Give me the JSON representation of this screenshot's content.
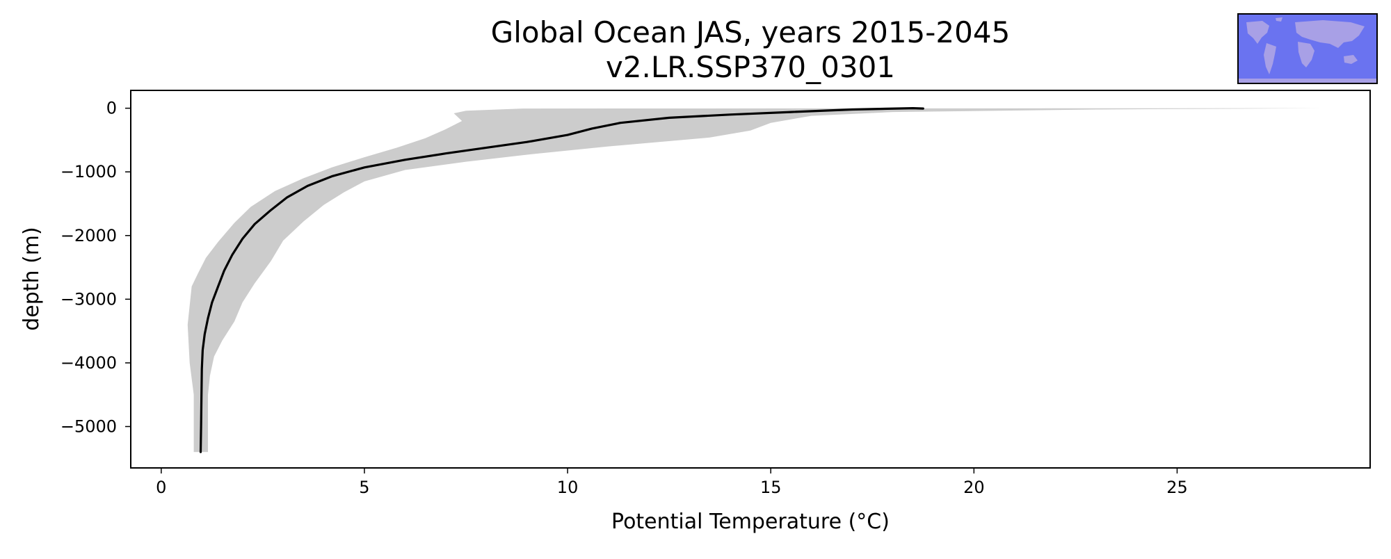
{
  "chart_data": {
    "type": "line",
    "title": "Global Ocean JAS, years 2015-2045",
    "subtitle": "v2.LR.SSP370_0301",
    "xlabel": "Potential Temperature (°C)",
    "ylabel": "depth (m)",
    "xlim": [
      -0.75,
      29.75
    ],
    "ylim": [
      -5650,
      280
    ],
    "xticks": [
      0,
      5,
      10,
      15,
      20,
      25
    ],
    "yticks": [
      0,
      -1000,
      -2000,
      -3000,
      -4000,
      -5000
    ],
    "xtick_labels": [
      "0",
      "5",
      "10",
      "15",
      "20",
      "25"
    ],
    "ytick_labels": [
      "0",
      "−1000",
      "−2000",
      "−3000",
      "−4000",
      "−5000"
    ],
    "grid": false,
    "colors": {
      "line": "#000000",
      "band": "#cccccc",
      "map_ocean": "#6a73f0",
      "map_land": "#a8a0e6",
      "frame": "#000000"
    },
    "series": [
      {
        "values": [
          {
            "x": 18.75,
            "y": -5
          },
          {
            "x": 18.5,
            "y": 0
          },
          {
            "x": 17.0,
            "y": -20
          },
          {
            "x": 15.5,
            "y": -60
          },
          {
            "x": 14.0,
            "y": -100
          },
          {
            "x": 12.5,
            "y": -150
          },
          {
            "x": 11.3,
            "y": -230
          },
          {
            "x": 10.6,
            "y": -320
          },
          {
            "x": 10.0,
            "y": -420
          },
          {
            "x": 9.0,
            "y": -530
          },
          {
            "x": 8.0,
            "y": -620
          },
          {
            "x": 7.0,
            "y": -710
          },
          {
            "x": 6.0,
            "y": -810
          },
          {
            "x": 5.0,
            "y": -930
          },
          {
            "x": 4.2,
            "y": -1070
          },
          {
            "x": 3.6,
            "y": -1220
          },
          {
            "x": 3.1,
            "y": -1400
          },
          {
            "x": 2.7,
            "y": -1600
          },
          {
            "x": 2.3,
            "y": -1820
          },
          {
            "x": 2.0,
            "y": -2050
          },
          {
            "x": 1.75,
            "y": -2300
          },
          {
            "x": 1.55,
            "y": -2550
          },
          {
            "x": 1.4,
            "y": -2800
          },
          {
            "x": 1.25,
            "y": -3050
          },
          {
            "x": 1.15,
            "y": -3300
          },
          {
            "x": 1.07,
            "y": -3550
          },
          {
            "x": 1.02,
            "y": -3800
          },
          {
            "x": 1.0,
            "y": -4100
          },
          {
            "x": 0.99,
            "y": -4500
          },
          {
            "x": 0.98,
            "y": -5000
          },
          {
            "x": 0.97,
            "y": -5400
          }
        ]
      }
    ],
    "band": {
      "upper": [
        {
          "x": 28.6,
          "y": 0
        },
        {
          "x": 23.0,
          "y": -20
        },
        {
          "x": 18.0,
          "y": -60
        },
        {
          "x": 16.0,
          "y": -120
        },
        {
          "x": 15.0,
          "y": -230
        },
        {
          "x": 14.5,
          "y": -350
        },
        {
          "x": 13.5,
          "y": -460
        },
        {
          "x": 11.0,
          "y": -600
        },
        {
          "x": 9.0,
          "y": -730
        },
        {
          "x": 7.5,
          "y": -840
        },
        {
          "x": 6.0,
          "y": -970
        },
        {
          "x": 5.0,
          "y": -1150
        },
        {
          "x": 4.5,
          "y": -1320
        },
        {
          "x": 4.0,
          "y": -1520
        },
        {
          "x": 3.5,
          "y": -1780
        },
        {
          "x": 3.0,
          "y": -2080
        },
        {
          "x": 2.7,
          "y": -2400
        },
        {
          "x": 2.3,
          "y": -2750
        },
        {
          "x": 2.0,
          "y": -3050
        },
        {
          "x": 1.8,
          "y": -3350
        },
        {
          "x": 1.5,
          "y": -3650
        },
        {
          "x": 1.3,
          "y": -3900
        },
        {
          "x": 1.2,
          "y": -4200
        },
        {
          "x": 1.15,
          "y": -4500
        },
        {
          "x": 1.15,
          "y": -5100
        },
        {
          "x": 1.15,
          "y": -5400
        }
      ],
      "lower": [
        {
          "x": 0.8,
          "y": -5400
        },
        {
          "x": 0.8,
          "y": -4500
        },
        {
          "x": 0.7,
          "y": -4000
        },
        {
          "x": 0.65,
          "y": -3400
        },
        {
          "x": 0.75,
          "y": -2800
        },
        {
          "x": 0.9,
          "y": -2600
        },
        {
          "x": 1.1,
          "y": -2350
        },
        {
          "x": 1.4,
          "y": -2100
        },
        {
          "x": 1.8,
          "y": -1800
        },
        {
          "x": 2.2,
          "y": -1550
        },
        {
          "x": 2.8,
          "y": -1300
        },
        {
          "x": 3.5,
          "y": -1100
        },
        {
          "x": 4.2,
          "y": -930
        },
        {
          "x": 5.0,
          "y": -770
        },
        {
          "x": 5.8,
          "y": -620
        },
        {
          "x": 6.5,
          "y": -470
        },
        {
          "x": 7.0,
          "y": -330
        },
        {
          "x": 7.4,
          "y": -200
        },
        {
          "x": 7.2,
          "y": -80
        },
        {
          "x": 7.5,
          "y": -40
        },
        {
          "x": 8.9,
          "y": -5
        }
      ]
    }
  }
}
